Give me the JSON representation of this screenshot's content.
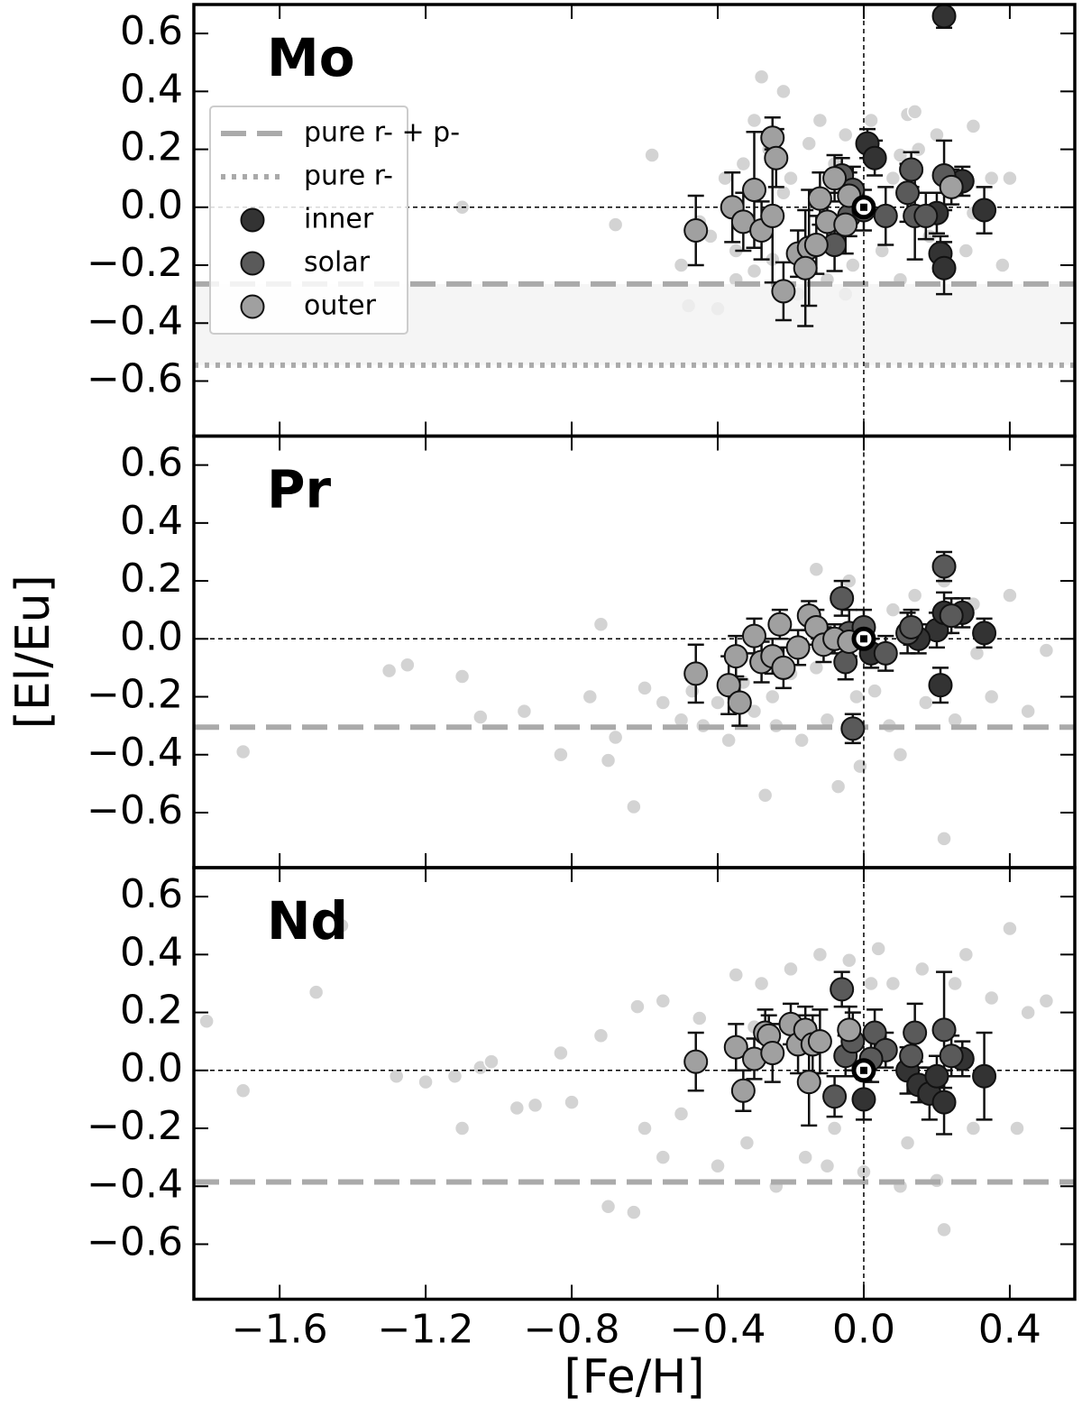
{
  "chart_data": [
    {
      "type": "scatter",
      "title": "Mo",
      "ylim": [
        -0.79,
        0.7
      ],
      "yticks": [
        {
          "value": -0.6,
          "label": "−0.6"
        },
        {
          "value": -0.4,
          "label": "−0.4"
        },
        {
          "value": -0.2,
          "label": "−0.2"
        },
        {
          "value": 0,
          "label": "0.0"
        },
        0.2,
        0.4,
        0.6
      ],
      "reference_lines": {
        "x": 0,
        "y": 0
      },
      "sun": {
        "x": 0,
        "y": 0
      },
      "lines": [
        {
          "name": "pure r- + p-",
          "y": -0.265,
          "style": "dashed",
          "color": "#aaaaaa"
        },
        {
          "name": "pure r-",
          "y": -0.545,
          "style": "dotted",
          "color": "#aaaaaa"
        }
      ],
      "shade_between_lines": true,
      "background": {
        "color": "#d3d3d3",
        "x": [
          -0.58,
          -0.68,
          -1.1,
          -0.5,
          -0.48,
          -0.45,
          -0.42,
          -0.4,
          -0.38,
          -0.35,
          -0.33,
          -0.3,
          -0.28,
          -0.26,
          -0.25,
          -0.22,
          -0.2,
          -0.18,
          -0.15,
          -0.12,
          -0.1,
          -0.08,
          -0.05,
          -0.03,
          0.02,
          0.05,
          0.08,
          0.1,
          0.12,
          0.15,
          0.18,
          0.2,
          0.25,
          0.28,
          0.3,
          0.35,
          0.38,
          0.4,
          0.14,
          -0.22,
          -0.05,
          0.1,
          0.3,
          -0.35,
          -0.3,
          -0.12
        ],
        "values": [
          0.18,
          -0.06,
          0.0,
          -0.2,
          -0.34,
          -0.05,
          -0.1,
          -0.35,
          0.1,
          -0.25,
          0.15,
          0.3,
          0.45,
          0.2,
          -0.18,
          0.4,
          0.1,
          -0.3,
          0.22,
          0.3,
          -0.25,
          0.15,
          0.25,
          -0.2,
          0.3,
          -0.15,
          0.1,
          -0.25,
          0.32,
          0.2,
          -0.1,
          0.25,
          0.05,
          -0.15,
          0.28,
          0.1,
          -0.2,
          0.1,
          0.33,
          0.05,
          -0.3,
          0.18,
          -0.02,
          -0.15,
          -0.22,
          0.05
        ]
      },
      "series": [
        {
          "name": "inner",
          "color": "#333333",
          "x": [
            0.01,
            0.03,
            0.21,
            0.22,
            0.33,
            0.27,
            0.2,
            0.22
          ],
          "values": [
            0.22,
            0.17,
            -0.16,
            -0.21,
            -0.01,
            0.09,
            -0.02,
            0.66
          ],
          "errors": [
            0.05,
            0.06,
            0.06,
            0.09,
            0.08,
            0.05,
            0.07,
            0.04
          ]
        },
        {
          "name": "solar",
          "color": "#5a5a5a",
          "x": [
            -0.06,
            -0.08,
            -0.04,
            0.06,
            0.13,
            0.12,
            0.14,
            0.17,
            0.22,
            -0.03,
            0.0
          ],
          "values": [
            0.11,
            -0.13,
            -0.03,
            -0.03,
            0.13,
            0.05,
            -0.03,
            -0.03,
            0.11,
            0.06,
            -0.01
          ],
          "errors": [
            0.06,
            0.09,
            0.07,
            0.1,
            0.06,
            0.1,
            0.15,
            0.08,
            0.12,
            0.08,
            0.07
          ]
        },
        {
          "name": "outer",
          "color": "#a0a0a0",
          "x": [
            -0.46,
            -0.36,
            -0.33,
            -0.3,
            -0.28,
            -0.25,
            -0.24,
            -0.25,
            -0.22,
            -0.18,
            -0.15,
            -0.16,
            -0.13,
            -0.12,
            -0.1,
            -0.08,
            -0.05,
            -0.04,
            0.24
          ],
          "values": [
            -0.08,
            0.0,
            -0.05,
            0.06,
            -0.08,
            0.24,
            0.17,
            -0.03,
            -0.29,
            -0.16,
            -0.14,
            -0.21,
            -0.13,
            0.03,
            -0.05,
            0.1,
            -0.06,
            0.04,
            0.07
          ],
          "errors": [
            0.12,
            0.12,
            0.1,
            0.2,
            0.1,
            0.07,
            0.1,
            0.23,
            0.1,
            0.08,
            0.2,
            0.2,
            0.1,
            0.09,
            0.1,
            0.08,
            0.1,
            0.08,
            0.06
          ]
        }
      ]
    },
    {
      "type": "scatter",
      "title": "Pr",
      "ylabel": "[El/Eu]",
      "ylim": [
        -0.79,
        0.7
      ],
      "yticks": [
        {
          "value": -0.6,
          "label": "−0.6"
        },
        {
          "value": -0.4,
          "label": "−0.4"
        },
        {
          "value": -0.2,
          "label": "−0.2"
        },
        {
          "value": 0,
          "label": "0.0"
        },
        0.2,
        0.4,
        0.6
      ],
      "reference_lines": {
        "x": 0,
        "y": 0
      },
      "sun": {
        "x": 0,
        "y": 0
      },
      "lines": [
        {
          "y": -0.305,
          "style": "dashed",
          "color": "#aaaaaa"
        }
      ],
      "background": {
        "color": "#d3d3d3",
        "x": [
          -1.7,
          -1.3,
          -1.25,
          -1.1,
          -1.05,
          -0.93,
          -0.83,
          -0.75,
          -0.72,
          -0.7,
          -0.68,
          -0.63,
          -0.6,
          -0.55,
          -0.5,
          -0.47,
          -0.44,
          -0.4,
          -0.37,
          -0.33,
          -0.3,
          -0.27,
          -0.24,
          -0.2,
          -0.17,
          -0.13,
          -0.1,
          -0.07,
          -0.04,
          -0.01,
          0.03,
          0.07,
          0.1,
          0.14,
          0.17,
          0.2,
          0.25,
          0.3,
          0.35,
          0.4,
          0.45,
          0.5,
          -0.13,
          -0.25,
          0.08,
          0.22,
          0.31,
          0.22,
          -0.02
        ],
        "values": [
          -0.39,
          -0.11,
          -0.09,
          -0.13,
          -0.27,
          -0.25,
          -0.4,
          -0.2,
          0.05,
          -0.42,
          -0.34,
          -0.58,
          -0.17,
          -0.22,
          -0.28,
          -0.18,
          -0.3,
          -0.22,
          -0.35,
          -0.15,
          -0.25,
          -0.54,
          -0.3,
          -0.12,
          -0.35,
          0.24,
          -0.28,
          -0.51,
          0.2,
          -0.44,
          -0.18,
          -0.3,
          -0.4,
          0.15,
          -0.22,
          0.02,
          -0.28,
          0.12,
          -0.2,
          0.15,
          -0.25,
          -0.04,
          -0.1,
          -0.2,
          0.1,
          -0.69,
          -0.05,
          0.2,
          -0.2
        ]
      },
      "series": [
        {
          "color": "#333333",
          "x": [
            0.02,
            0.2,
            0.22,
            0.27,
            0.33,
            0.21,
            0.15
          ],
          "values": [
            -0.05,
            0.03,
            0.09,
            0.09,
            0.02,
            -0.16,
            0.0
          ],
          "errors": [
            0.05,
            0.06,
            0.07,
            0.05,
            0.05,
            0.06,
            0.05
          ]
        },
        {
          "color": "#5a5a5a",
          "x": [
            -0.06,
            -0.05,
            -0.04,
            0.0,
            0.06,
            0.12,
            0.13,
            0.22,
            0.24,
            -0.03
          ],
          "values": [
            0.14,
            -0.08,
            0.02,
            0.04,
            -0.05,
            0.02,
            0.04,
            0.25,
            0.08,
            -0.31
          ],
          "errors": [
            0.06,
            0.06,
            0.08,
            0.06,
            0.06,
            0.07,
            0.06,
            0.05,
            0.06,
            0.05
          ]
        },
        {
          "color": "#a0a0a0",
          "x": [
            -0.46,
            -0.37,
            -0.35,
            -0.34,
            -0.3,
            -0.28,
            -0.25,
            -0.22,
            -0.23,
            -0.18,
            -0.15,
            -0.13,
            -0.11,
            -0.08,
            -0.04
          ],
          "values": [
            -0.12,
            -0.16,
            -0.06,
            -0.22,
            0.01,
            -0.08,
            -0.06,
            -0.1,
            0.05,
            -0.03,
            0.08,
            0.04,
            -0.02,
            0.0,
            -0.01
          ],
          "errors": [
            0.1,
            0.1,
            0.07,
            0.08,
            0.06,
            0.07,
            0.06,
            0.07,
            0.05,
            0.06,
            0.05,
            0.06,
            0.06,
            0.05,
            0.06
          ]
        }
      ]
    },
    {
      "type": "scatter",
      "title": "Nd",
      "xlabel": "[Fe/H]",
      "xlim": [
        -1.835,
        0.578
      ],
      "xticks": [
        {
          "value": -1.6,
          "label": "−1.6"
        },
        {
          "value": -1.2,
          "label": "−1.2"
        },
        {
          "value": -0.8,
          "label": "−0.8"
        },
        {
          "value": -0.4,
          "label": "−0.4"
        },
        {
          "value": 0,
          "label": "0.0"
        },
        0.4
      ],
      "ylim": [
        -0.79,
        0.7
      ],
      "yticks": [
        {
          "value": -0.6,
          "label": "−0.6"
        },
        {
          "value": -0.4,
          "label": "−0.4"
        },
        {
          "value": -0.2,
          "label": "−0.2"
        },
        {
          "value": 0,
          "label": "0.0"
        },
        0.2,
        0.4,
        0.6
      ],
      "reference_lines": {
        "x": 0,
        "y": 0
      },
      "sun": {
        "x": 0,
        "y": 0
      },
      "lines": [
        {
          "y": -0.385,
          "style": "dashed",
          "color": "#aaaaaa"
        }
      ],
      "background": {
        "color": "#d3d3d3",
        "x": [
          -1.8,
          -1.7,
          -1.43,
          -1.5,
          -1.28,
          -1.2,
          -1.12,
          -1.1,
          -1.05,
          -1.02,
          -0.95,
          -0.9,
          -0.83,
          -0.8,
          -0.72,
          -0.7,
          -0.63,
          -0.62,
          -0.55,
          -0.6,
          -0.55,
          -0.5,
          -0.45,
          -0.4,
          -0.35,
          -0.32,
          -0.28,
          -0.24,
          -0.2,
          -0.16,
          -0.12,
          -0.08,
          -0.04,
          0.0,
          0.04,
          0.08,
          0.12,
          0.16,
          0.2,
          0.25,
          0.3,
          0.35,
          0.4,
          0.45,
          0.5,
          -0.1,
          0.02,
          0.22,
          0.42,
          -0.3,
          0.1,
          0.28
        ],
        "values": [
          0.17,
          -0.07,
          0.5,
          0.27,
          -0.02,
          -0.04,
          -0.02,
          -0.2,
          0.01,
          0.03,
          -0.13,
          -0.12,
          0.06,
          -0.11,
          0.12,
          -0.47,
          -0.49,
          0.22,
          0.24,
          -0.2,
          -0.3,
          -0.15,
          0.18,
          -0.33,
          0.33,
          -0.25,
          0.3,
          -0.4,
          0.35,
          -0.3,
          0.4,
          -0.2,
          0.38,
          -0.35,
          0.42,
          0.3,
          -0.25,
          0.35,
          -0.38,
          0.3,
          -0.2,
          0.25,
          0.49,
          0.2,
          0.24,
          -0.33,
          0.3,
          -0.55,
          -0.2,
          0.15,
          -0.4,
          0.4
        ]
      },
      "series": [
        {
          "color": "#333333",
          "x": [
            0.0,
            0.12,
            0.15,
            0.18,
            0.2,
            0.22,
            0.27,
            0.33
          ],
          "values": [
            -0.1,
            0.0,
            -0.05,
            -0.08,
            -0.02,
            -0.11,
            0.04,
            -0.02
          ],
          "errors": [
            0.07,
            0.08,
            0.06,
            0.09,
            0.07,
            0.11,
            0.06,
            0.15
          ]
        },
        {
          "color": "#5a5a5a",
          "x": [
            -0.06,
            -0.08,
            -0.05,
            -0.03,
            0.03,
            0.06,
            0.14,
            0.13,
            0.22,
            0.24,
            0.02
          ],
          "values": [
            0.28,
            -0.09,
            0.05,
            0.1,
            0.13,
            0.07,
            0.13,
            0.05,
            0.14,
            0.05,
            0.04
          ],
          "errors": [
            0.06,
            0.07,
            0.07,
            0.1,
            0.08,
            0.06,
            0.1,
            0.08,
            0.2,
            0.07,
            0.08
          ]
        },
        {
          "color": "#a0a0a0",
          "x": [
            -0.46,
            -0.35,
            -0.33,
            -0.3,
            -0.27,
            -0.26,
            -0.25,
            -0.2,
            -0.18,
            -0.16,
            -0.14,
            -0.12,
            -0.15,
            -0.04
          ],
          "values": [
            0.03,
            0.08,
            -0.07,
            0.04,
            0.13,
            0.12,
            0.06,
            0.16,
            0.09,
            0.14,
            0.09,
            0.1,
            -0.04,
            0.14
          ],
          "errors": [
            0.1,
            0.08,
            0.07,
            0.07,
            0.08,
            0.07,
            0.1,
            0.07,
            0.1,
            0.08,
            0.1,
            0.11,
            0.15,
            0.08
          ]
        }
      ]
    }
  ]
}
